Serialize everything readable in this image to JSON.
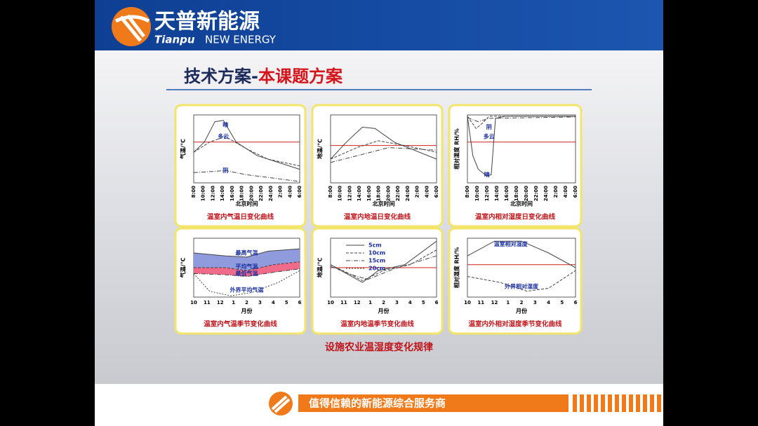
{
  "header": {
    "logo_cn": "天普新能源",
    "logo_en_1": "Tianpu",
    "logo_en_2": "NEW ENERGY"
  },
  "title": {
    "part1": "技术方案-",
    "part2": "本课题方案"
  },
  "panels": [
    {
      "caption": "温室内气温日变化曲线",
      "y_label": "气温/℃",
      "x_label": "北京时间",
      "x_ticks": [
        "8:00",
        "10:00",
        "12:00",
        "14:00",
        "16:00",
        "18:00",
        "20:00",
        "22:00",
        "24:00",
        "2:00",
        "4:00",
        "6:00"
      ],
      "annotations": [
        "晴",
        "多云",
        "阴"
      ]
    },
    {
      "caption": "温室内地温日变化曲线",
      "y_label": "地温/℃",
      "x_label": "北京时间",
      "x_ticks": [
        "8:00",
        "10:00",
        "12:00",
        "14:00",
        "16:00",
        "18:00",
        "20:00",
        "22:00",
        "24:00",
        "2:00",
        "4:00",
        "6:00"
      ],
      "annotations": []
    },
    {
      "caption": "温室内相对湿度日变化曲线",
      "y_label": "相对湿度 RH/%",
      "x_label": "北京时间",
      "x_ticks": [
        "8:00",
        "10:00",
        "12:00",
        "14:00",
        "16:00",
        "18:00",
        "20:00",
        "22:00",
        "24:00",
        "2:00",
        "4:00",
        "6:00"
      ],
      "annotations": [
        "阴",
        "多云",
        "晴"
      ]
    },
    {
      "caption": "温室内气温季节变化曲线",
      "y_label": "气温/℃",
      "x_label": "月份",
      "x_ticks": [
        "10",
        "11",
        "12",
        "1",
        "2",
        "3",
        "4",
        "5",
        "6"
      ],
      "annotations": [
        "最高气温",
        "平均气温",
        "最低气温",
        "外界平均气温"
      ]
    },
    {
      "caption": "温室内地温季节变化曲线",
      "y_label": "地温/℃",
      "x_label": "月份",
      "x_ticks": [
        "10",
        "11",
        "12",
        "1",
        "2",
        "3",
        "4",
        "5",
        "6"
      ],
      "annotations": [
        "5cm",
        "10cm",
        "15cm",
        "20cm"
      ]
    },
    {
      "caption": "温室内外相对湿度季节变化曲线",
      "y_label": "相对湿度 RH/%",
      "x_label": "月份",
      "x_ticks": [
        "10",
        "11",
        "12",
        "1",
        "2",
        "3",
        "4",
        "5",
        "6"
      ],
      "annotations": [
        "温室相对湿度",
        "外界相对湿度"
      ]
    }
  ],
  "subtitle": "设施农业温湿度变化规律",
  "footer": {
    "slogan": "值得信赖的新能源综合服务商"
  }
}
